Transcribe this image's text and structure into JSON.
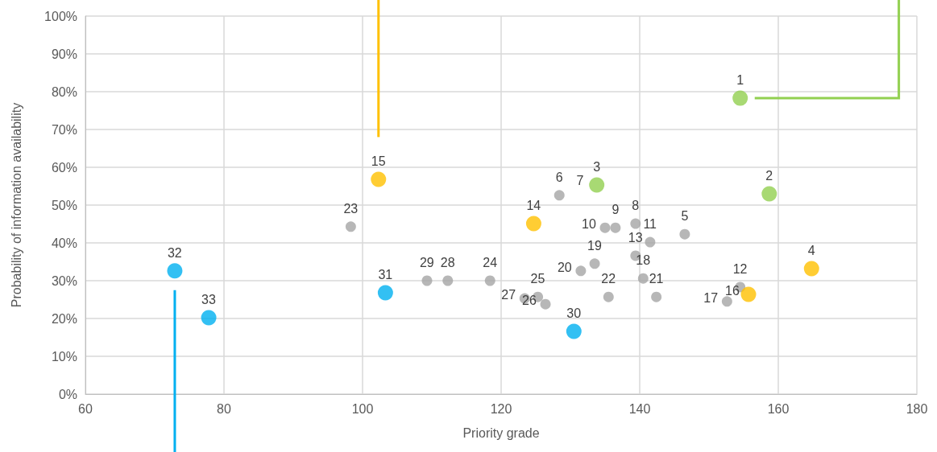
{
  "chart_data": {
    "type": "scatter",
    "xlabel": "Priority grade",
    "ylabel": "Probability of information availability",
    "xlim": [
      60,
      180
    ],
    "xticks": [
      60,
      80,
      100,
      120,
      140,
      160,
      180
    ],
    "ylim": [
      0,
      100
    ],
    "yticks": [
      {
        "value": 0,
        "label": "0%"
      },
      {
        "value": 10,
        "label": "10%"
      },
      {
        "value": 20,
        "label": "20%"
      },
      {
        "value": 30,
        "label": "30%"
      },
      {
        "value": 40,
        "label": "40%"
      },
      {
        "value": 50,
        "label": "50%"
      },
      {
        "value": 60,
        "label": "60%"
      },
      {
        "value": 70,
        "label": "70%"
      },
      {
        "value": 80,
        "label": "80%"
      },
      {
        "value": 90,
        "label": "90%"
      },
      {
        "value": 100,
        "label": "100%"
      }
    ],
    "grid": true,
    "marker": "circle",
    "series": [
      {
        "color": "#a5a5a5",
        "x": [
          146.5,
          128.4,
          133.2,
          139.4,
          136.5,
          135.0,
          141.5,
          154.5,
          139.4,
          140.5,
          133.5,
          131.5,
          142.4,
          135.5,
          98.3,
          118.4,
          125.3,
          126.4,
          123.4,
          112.3,
          109.3,
          152.6
        ],
        "values": [
          42.3,
          52.6,
          null,
          45.1,
          44.0,
          44.0,
          40.2,
          28.3,
          36.6,
          30.6,
          34.5,
          32.6,
          25.7,
          25.7,
          44.3,
          30.0,
          25.7,
          23.8,
          25.3,
          30.0,
          30.0,
          24.5
        ]
      },
      {
        "color": "#92d050",
        "x": [
          154.5,
          158.7,
          133.8
        ],
        "values": [
          78.3,
          53.0,
          55.3
        ]
      },
      {
        "color": "#ffc000",
        "x": [
          164.8,
          124.7,
          102.3,
          155.7
        ],
        "values": [
          33.2,
          45.1,
          56.8,
          26.4
        ]
      },
      {
        "color": "#00b0f0",
        "x": [
          130.5,
          103.3,
          72.9,
          77.8
        ],
        "values": [
          16.6,
          26.8,
          32.6,
          20.2
        ]
      }
    ],
    "annotations": [
      {
        "text": "1",
        "x": 154.5,
        "y": 78.3
      },
      {
        "text": "2",
        "x": 158.7,
        "y": 53.0
      },
      {
        "text": "3",
        "x": 133.8,
        "y": 55.3
      },
      {
        "text": "4",
        "x": 164.8,
        "y": 33.2
      },
      {
        "text": "5",
        "x": 146.5,
        "y": 42.3
      },
      {
        "text": "6",
        "x": 128.4,
        "y": 52.6
      },
      {
        "text": "7",
        "x": 133.2,
        "y": 55.5
      },
      {
        "text": "8",
        "x": 139.4,
        "y": 45.1
      },
      {
        "text": "9",
        "x": 136.5,
        "y": 44.0
      },
      {
        "text": "10",
        "x": 135.0,
        "y": 44.0
      },
      {
        "text": "11",
        "x": 141.5,
        "y": 40.2
      },
      {
        "text": "12",
        "x": 154.5,
        "y": 28.3
      },
      {
        "text": "13",
        "x": 139.4,
        "y": 36.6
      },
      {
        "text": "14",
        "x": 124.7,
        "y": 45.1
      },
      {
        "text": "15",
        "x": 102.3,
        "y": 56.8
      },
      {
        "text": "16",
        "x": 155.7,
        "y": 26.4
      },
      {
        "text": "17",
        "x": 152.6,
        "y": 24.5
      },
      {
        "text": "18",
        "x": 140.5,
        "y": 30.6
      },
      {
        "text": "19",
        "x": 133.5,
        "y": 34.5
      },
      {
        "text": "20",
        "x": 131.5,
        "y": 32.6
      },
      {
        "text": "21",
        "x": 142.4,
        "y": 25.7
      },
      {
        "text": "22",
        "x": 135.5,
        "y": 25.7
      },
      {
        "text": "23",
        "x": 98.3,
        "y": 44.3
      },
      {
        "text": "24",
        "x": 118.4,
        "y": 30.0
      },
      {
        "text": "25",
        "x": 125.3,
        "y": 25.7
      },
      {
        "text": "26",
        "x": 126.4,
        "y": 23.8
      },
      {
        "text": "27",
        "x": 123.4,
        "y": 25.3
      },
      {
        "text": "28",
        "x": 112.3,
        "y": 30.0
      },
      {
        "text": "29",
        "x": 109.3,
        "y": 30.0
      },
      {
        "text": "30",
        "x": 130.5,
        "y": 16.6
      },
      {
        "text": "31",
        "x": 103.3,
        "y": 26.8
      },
      {
        "text": "32",
        "x": 72.9,
        "y": 32.6
      },
      {
        "text": "33",
        "x": 77.8,
        "y": 20.2
      }
    ]
  }
}
